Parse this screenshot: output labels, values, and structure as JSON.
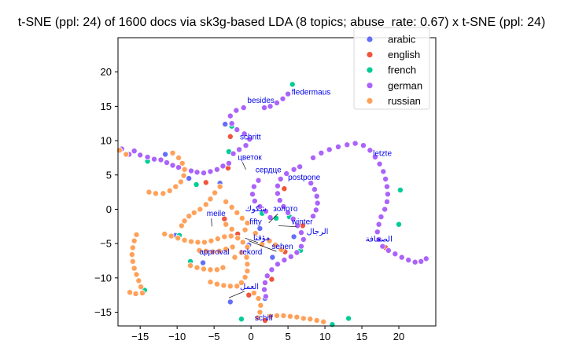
{
  "chart_data": {
    "type": "scatter",
    "title": "t-SNE (ppl: 24) of 1600 docs via sk3g-based LDA (8 topics; abuse_rate: 0.67) x t-SNE (ppl: 24)",
    "xlabel": "",
    "ylabel": "",
    "xlim": [
      -18,
      25
    ],
    "ylim": [
      -17,
      25
    ],
    "xticks": [
      -15,
      -10,
      -5,
      0,
      5,
      10,
      15,
      20
    ],
    "yticks": [
      -15,
      -10,
      -5,
      0,
      5,
      10,
      15,
      20
    ],
    "legend_position": "top-right",
    "series": [
      {
        "name": "arabic",
        "color": "#636efa",
        "points": [
          [
            -11.6,
            8.0
          ],
          [
            -8.4,
            4.5
          ],
          [
            -4.2,
            3.8
          ],
          [
            -0.3,
            -5.2
          ],
          [
            1.2,
            -2.8
          ],
          [
            -6.5,
            -7.8
          ],
          [
            -10.2,
            -3.8
          ],
          [
            2.9,
            -7.0
          ],
          [
            -2.8,
            -13.5
          ],
          [
            5.8,
            -4.0
          ],
          [
            -3.5,
            12.4
          ],
          [
            1.9,
            -13.0
          ]
        ]
      },
      {
        "name": "english",
        "color": "#ef553b",
        "points": [
          [
            -2.8,
            10.6
          ],
          [
            -3.1,
            6.0
          ],
          [
            -6.1,
            3.9
          ],
          [
            -1.8,
            -3.6
          ],
          [
            4.6,
            -6.2
          ],
          [
            18.2,
            -5.6
          ],
          [
            -3.6,
            -1.4
          ],
          [
            2.8,
            -10.2
          ],
          [
            -0.3,
            -12.5
          ],
          [
            1.9,
            -16.2
          ],
          [
            4.5,
            3.0
          ],
          [
            7.0,
            -2.4
          ]
        ]
      },
      {
        "name": "french",
        "color": "#00cc96",
        "points": [
          [
            5.6,
            18.2
          ],
          [
            -2.6,
            12.1
          ],
          [
            -3.0,
            8.4
          ],
          [
            -14.0,
            7.0
          ],
          [
            -7.4,
            3.6
          ],
          [
            -9.7,
            -3.8
          ],
          [
            -14.4,
            -11.8
          ],
          [
            3.4,
            -1.3
          ],
          [
            6.7,
            -6.0
          ],
          [
            1.5,
            -0.6
          ],
          [
            -8.2,
            -7.6
          ],
          [
            11.0,
            -16.8
          ],
          [
            13.2,
            -15.9
          ],
          [
            20.0,
            -2.2
          ],
          [
            20.2,
            2.8
          ],
          [
            5.2,
            -1.1
          ],
          [
            -1.3,
            -16.0
          ]
        ]
      },
      {
        "name": "german",
        "color": "#ab63fa",
        "points": [
          [
            -17.5,
            8.8
          ],
          [
            -16.5,
            8.0
          ],
          [
            -15.8,
            8.5
          ],
          [
            -15.0,
            7.9
          ],
          [
            -14.0,
            7.6
          ],
          [
            -13.1,
            7.3
          ],
          [
            -12.2,
            7.2
          ],
          [
            -11.4,
            6.8
          ],
          [
            -10.6,
            6.4
          ],
          [
            -9.8,
            6.1
          ],
          [
            -8.9,
            5.8
          ],
          [
            -8.1,
            5.6
          ],
          [
            -7.3,
            5.4
          ],
          [
            -6.4,
            5.3
          ],
          [
            -5.5,
            5.5
          ],
          [
            -4.6,
            5.8
          ],
          [
            -3.8,
            6.3
          ],
          [
            -3.0,
            6.7
          ],
          [
            8.4,
            7.5
          ],
          [
            9.5,
            8.2
          ],
          [
            10.6,
            8.7
          ],
          [
            11.8,
            9.1
          ],
          [
            13.0,
            9.4
          ],
          [
            14.1,
            9.6
          ],
          [
            15.2,
            9.3
          ],
          [
            16.1,
            8.6
          ],
          [
            16.8,
            7.6
          ],
          [
            17.4,
            6.6
          ],
          [
            17.9,
            5.5
          ],
          [
            18.2,
            4.4
          ],
          [
            18.4,
            3.3
          ],
          [
            18.5,
            2.2
          ],
          [
            18.4,
            1.1
          ],
          [
            18.1,
            0.0
          ],
          [
            17.6,
            -1.1
          ],
          [
            17.3,
            -2.2
          ],
          [
            17.1,
            -3.3
          ],
          [
            17.3,
            -4.4
          ],
          [
            17.8,
            -5.4
          ],
          [
            18.6,
            -6.0
          ],
          [
            19.5,
            -6.5
          ],
          [
            20.4,
            -7.0
          ],
          [
            21.3,
            -7.4
          ],
          [
            22.2,
            -7.7
          ],
          [
            23.0,
            -7.6
          ],
          [
            23.7,
            -7.2
          ],
          [
            6.6,
            6.2
          ],
          [
            5.8,
            5.8
          ],
          [
            4.8,
            5.2
          ],
          [
            4.0,
            4.4
          ],
          [
            3.6,
            3.4
          ],
          [
            3.6,
            2.3
          ],
          [
            3.9,
            1.3
          ],
          [
            4.4,
            0.4
          ],
          [
            5.0,
            -0.5
          ],
          [
            5.7,
            -1.4
          ],
          [
            6.3,
            -2.4
          ],
          [
            6.8,
            -3.4
          ],
          [
            7.1,
            -4.4
          ],
          [
            6.8,
            -5.4
          ],
          [
            6.2,
            -6.3
          ],
          [
            5.4,
            -6.9
          ],
          [
            4.5,
            -7.4
          ],
          [
            3.6,
            -8.0
          ],
          [
            2.8,
            -8.8
          ],
          [
            2.2,
            -9.7
          ],
          [
            1.9,
            -10.7
          ],
          [
            1.8,
            -11.7
          ],
          [
            2.0,
            -12.7
          ],
          [
            1.0,
            4.2
          ],
          [
            0.4,
            3.3
          ],
          [
            0.2,
            2.2
          ],
          [
            0.5,
            1.2
          ],
          [
            1.2,
            0.4
          ],
          [
            2.0,
            -0.3
          ],
          [
            2.6,
            -1.2
          ],
          [
            8.1,
            3.8
          ],
          [
            8.6,
            2.9
          ],
          [
            8.9,
            1.9
          ],
          [
            9.0,
            0.9
          ],
          [
            8.8,
            -0.1
          ],
          [
            8.4,
            -1.0
          ],
          [
            1.8,
            14.8
          ],
          [
            2.6,
            15.0
          ],
          [
            3.5,
            15.5
          ],
          [
            4.3,
            16.1
          ],
          [
            5.0,
            16.8
          ],
          [
            -1.0,
            14.8
          ],
          [
            -2.0,
            14.4
          ],
          [
            -2.8,
            13.6
          ],
          [
            -2.6,
            12.5
          ],
          [
            -1.9,
            11.6
          ],
          [
            -0.9,
            11.0
          ],
          [
            -0.2,
            10.2
          ],
          [
            -0.7,
            9.3
          ],
          [
            -1.6,
            8.7
          ],
          [
            -2.4,
            8.1
          ]
        ]
      },
      {
        "name": "russian",
        "color": "#ffa15a",
        "points": [
          [
            -17.8,
            8.6
          ],
          [
            -16.9,
            8.0
          ],
          [
            -10.6,
            8.2
          ],
          [
            -9.8,
            7.5
          ],
          [
            -9.3,
            6.7
          ],
          [
            -9.0,
            5.8
          ],
          [
            -9.1,
            4.9
          ],
          [
            -9.5,
            4.0
          ],
          [
            -10.2,
            3.3
          ],
          [
            -11.0,
            2.7
          ],
          [
            -11.9,
            2.3
          ],
          [
            -12.9,
            2.3
          ],
          [
            -13.8,
            2.5
          ],
          [
            -4.2,
            3.3
          ],
          [
            -4.9,
            2.4
          ],
          [
            -5.5,
            1.5
          ],
          [
            -6.1,
            0.7
          ],
          [
            -6.9,
            0.0
          ],
          [
            -7.7,
            -0.5
          ],
          [
            -8.4,
            -1.0
          ],
          [
            -9.0,
            -1.7
          ],
          [
            -9.4,
            -2.4
          ],
          [
            -15.5,
            -3.7
          ],
          [
            -15.8,
            -4.6
          ],
          [
            -16.0,
            -5.6
          ],
          [
            -16.1,
            -6.6
          ],
          [
            -16.0,
            -7.6
          ],
          [
            -15.8,
            -8.6
          ],
          [
            -15.5,
            -9.5
          ],
          [
            -15.2,
            -10.4
          ],
          [
            -14.9,
            -11.3
          ],
          [
            -14.7,
            -12.2
          ],
          [
            -15.6,
            -12.3
          ],
          [
            -16.4,
            -12.1
          ],
          [
            -11.7,
            -3.6
          ],
          [
            -10.8,
            -3.9
          ],
          [
            -9.9,
            -4.2
          ],
          [
            -9.0,
            -4.5
          ],
          [
            -8.1,
            -4.7
          ],
          [
            -7.2,
            -4.8
          ],
          [
            -6.3,
            -4.8
          ],
          [
            -5.4,
            -4.6
          ],
          [
            -4.5,
            -4.3
          ],
          [
            -3.6,
            -4.0
          ],
          [
            -2.7,
            -3.9
          ],
          [
            -1.8,
            -4.2
          ],
          [
            -1.1,
            -4.8
          ],
          [
            -0.5,
            -5.5
          ],
          [
            -7.0,
            -6.0
          ],
          [
            -6.1,
            -6.1
          ],
          [
            -5.2,
            -6.2
          ],
          [
            -4.3,
            -6.1
          ],
          [
            -3.4,
            -5.8
          ],
          [
            -2.5,
            -5.5
          ],
          [
            -8.2,
            -8.2
          ],
          [
            -7.3,
            -8.5
          ],
          [
            -6.4,
            -8.7
          ],
          [
            -5.5,
            -8.8
          ],
          [
            -4.6,
            -8.8
          ],
          [
            -3.8,
            -8.5
          ],
          [
            -5.5,
            -10.6
          ],
          [
            -4.6,
            -10.9
          ],
          [
            -3.7,
            -11.1
          ],
          [
            -2.8,
            -11.2
          ],
          [
            -1.9,
            -11.2
          ],
          [
            -1.3,
            -10.7
          ],
          [
            -0.8,
            -9.9
          ],
          [
            -0.5,
            -9.0
          ],
          [
            -0.5,
            -8.0
          ],
          [
            -0.6,
            -7.0
          ],
          [
            0.4,
            -12.2
          ],
          [
            1.0,
            -13.0
          ],
          [
            1.3,
            -14.0
          ],
          [
            1.2,
            -15.0
          ],
          [
            0.9,
            -15.8
          ],
          [
            2.6,
            -15.6
          ],
          [
            3.5,
            -15.5
          ],
          [
            4.4,
            -15.5
          ],
          [
            5.3,
            -15.6
          ],
          [
            6.2,
            -15.7
          ],
          [
            7.1,
            -15.9
          ],
          [
            8.0,
            -16.0
          ],
          [
            8.9,
            -16.2
          ],
          [
            9.8,
            -16.4
          ],
          [
            -3.4,
            1.1
          ],
          [
            -2.6,
            0.3
          ],
          [
            -1.9,
            -0.5
          ],
          [
            -1.2,
            -1.3
          ],
          [
            -0.5,
            -2.0
          ],
          [
            -3.4,
            -2.2
          ],
          [
            -2.6,
            -2.9
          ],
          [
            2.5,
            -4.6
          ],
          [
            3.3,
            -5.2
          ],
          [
            4.1,
            -5.9
          ],
          [
            1.5,
            -5.1
          ],
          [
            -0.8,
            -3.0
          ],
          [
            0.6,
            -3.5
          ],
          [
            -1.3,
            -6.3
          ],
          [
            -2.2,
            -7.0
          ]
        ]
      }
    ],
    "annotations": [
      {
        "text": "fledermaus",
        "x": 5.5,
        "y": 16.7
      },
      {
        "text": "besides",
        "x": -0.5,
        "y": 15.5
      },
      {
        "text": "schritt",
        "x": -1.5,
        "y": 10.2
      },
      {
        "text": "letzte",
        "x": 16.5,
        "y": 7.8
      },
      {
        "text": "цветок",
        "x": -1.8,
        "y": 7.2,
        "arrow_to": [
          -0.7,
          5.8
        ]
      },
      {
        "text": "сердце",
        "x": 0.6,
        "y": 5.4
      },
      {
        "text": "postpone",
        "x": 5.0,
        "y": 4.3
      },
      {
        "text": "meile",
        "x": -6.0,
        "y": -1.0,
        "arrow_to": [
          -5.3,
          -2.5
        ]
      },
      {
        "text": "شكوك",
        "x": -0.8,
        "y": -0.3
      },
      {
        "text": "золото",
        "x": 3.0,
        "y": -0.3,
        "arrow_to": [
          2.4,
          -2.0
        ]
      },
      {
        "text": "fifty",
        "x": -0.2,
        "y": -2.2
      },
      {
        "text": "winter",
        "x": 5.5,
        "y": -2.2,
        "arrow_to": [
          3.7,
          -2.4
        ]
      },
      {
        "text": "الرجال",
        "x": 7.5,
        "y": -3.6
      },
      {
        "text": "مؤقتا",
        "x": 0.3,
        "y": -4.5,
        "arrow_to": [
          -0.8,
          -4.2
        ]
      },
      {
        "text": "الصحافة",
        "x": 15.5,
        "y": -4.7
      },
      {
        "text": "sehen",
        "x": 2.8,
        "y": -5.8,
        "arrow_to": [
          -0.3,
          -4.6
        ]
      },
      {
        "text": "approval",
        "x": -7.0,
        "y": -6.6
      },
      {
        "text": "rekord",
        "x": -1.5,
        "y": -6.6
      },
      {
        "text": "العمل",
        "x": -1.5,
        "y": -11.6,
        "arrow_to": [
          -3.0,
          -12.9
        ]
      },
      {
        "text": "schiff",
        "x": 0.5,
        "y": -16.2
      }
    ]
  }
}
